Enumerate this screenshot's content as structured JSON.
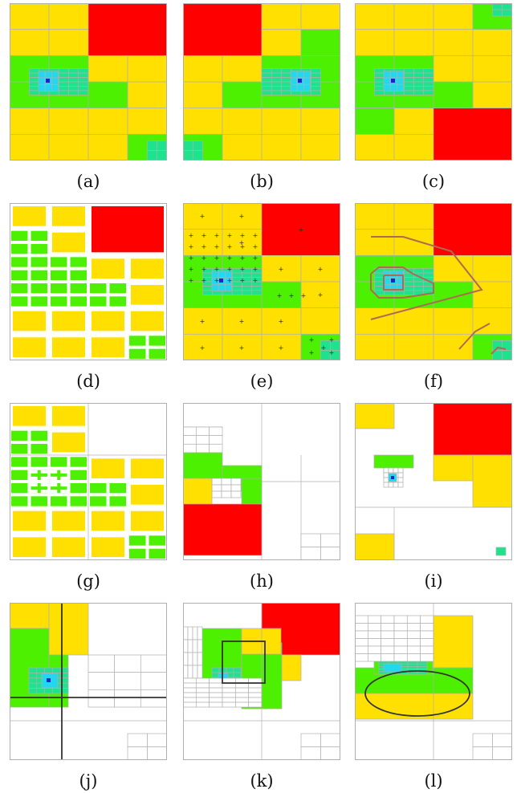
{
  "colors": {
    "red": "#ff0000",
    "yellow": "#ffe000",
    "green": "#4cf000",
    "teal": "#1ee28c",
    "cyan": "#22d8ee",
    "blue": "#2222cc",
    "grid": "#b0b0b0",
    "contour": "#b06a52",
    "shape": "#333333"
  },
  "panels": [
    {
      "id": "a",
      "caption": "(a)"
    },
    {
      "id": "b",
      "caption": "(b)"
    },
    {
      "id": "c",
      "caption": "(c)"
    },
    {
      "id": "d",
      "caption": "(d)"
    },
    {
      "id": "e",
      "caption": "(e)"
    },
    {
      "id": "f",
      "caption": "(f)"
    },
    {
      "id": "g",
      "caption": "(g)"
    },
    {
      "id": "h",
      "caption": "(h)"
    },
    {
      "id": "i",
      "caption": "(i)"
    },
    {
      "id": "j",
      "caption": "(j)"
    },
    {
      "id": "k",
      "caption": "(k)"
    },
    {
      "id": "l",
      "caption": "(l)"
    }
  ]
}
